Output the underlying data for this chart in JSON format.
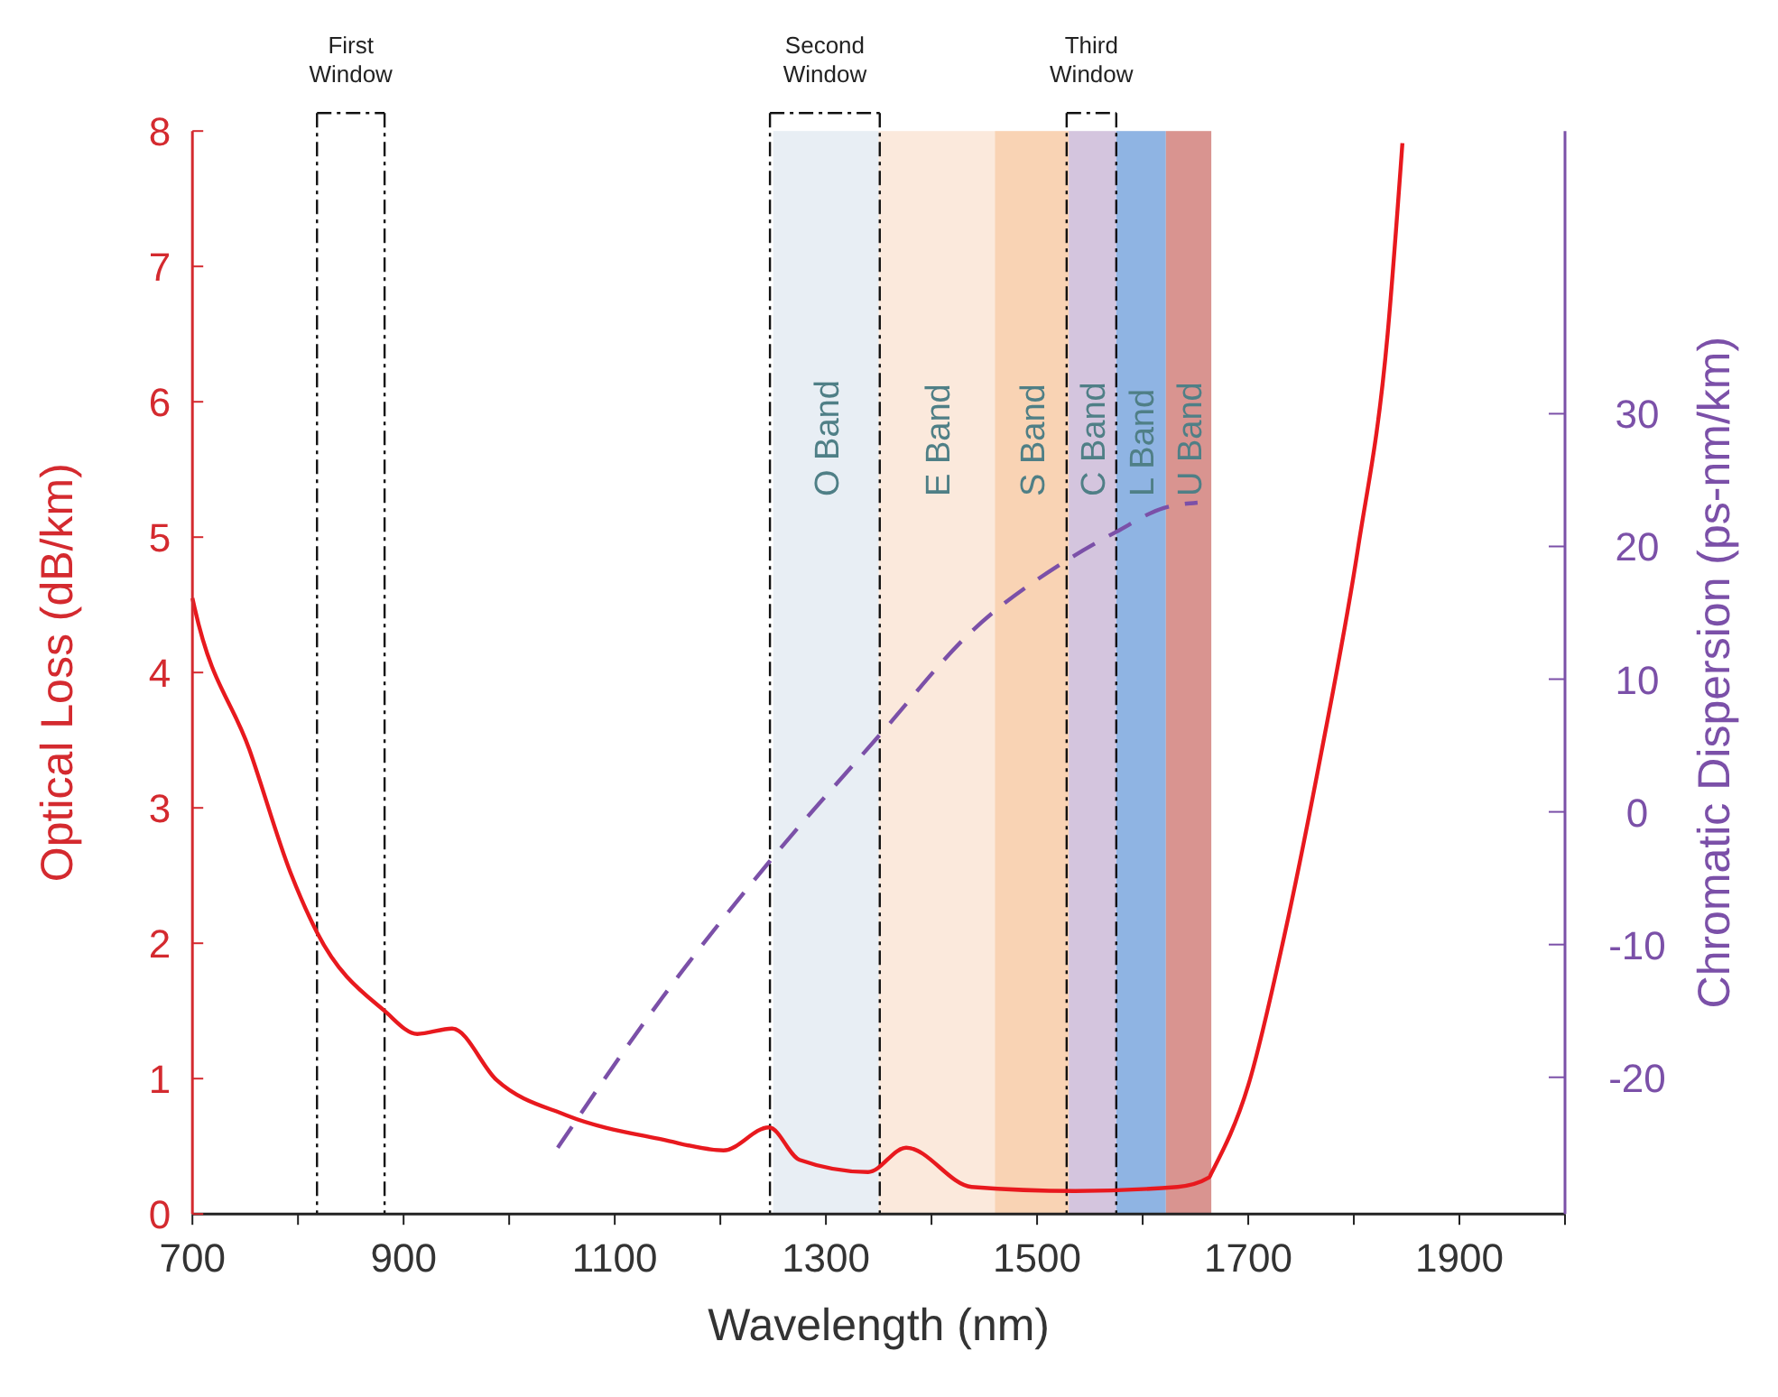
{
  "chart_data": {
    "type": "line",
    "xlabel": "Wavelength (nm)",
    "ylabel": "Optical Loss (dB/km)",
    "y2label": "Chromatic Dispersion (ps-nm/km)",
    "xlim": [
      700,
      2000
    ],
    "xticks": [
      700,
      {
        "value": 800,
        "label": null
      },
      900,
      {
        "value": 1000,
        "label": null
      },
      1100,
      {
        "value": 1200,
        "label": null
      },
      1300,
      {
        "value": 1400,
        "label": null
      },
      1500,
      {
        "value": 1600,
        "label": null
      },
      1700,
      {
        "value": 1800,
        "label": null
      },
      1900,
      {
        "value": 2000,
        "label": null
      }
    ],
    "ylim": [
      0,
      8
    ],
    "yticks": [
      0,
      1,
      2,
      3,
      4,
      5,
      6,
      7,
      8
    ],
    "y2lim": [
      -30.3,
      51.3
    ],
    "y2ticks": [
      -20,
      -10,
      0,
      10,
      20,
      30
    ],
    "series": [
      {
        "color": "#e8191e",
        "axis": "y",
        "line_style": "solid",
        "x": [
          700,
          702,
          754,
          793,
          818,
          882,
          913,
          946,
          988,
          1054,
          1145,
          1203,
          1246,
          1275,
          1340,
          1376,
          1438,
          1536,
          1633,
          1663,
          1665,
          1700,
          1734,
          1769,
          1804,
          1832,
          1846
        ],
        "values": [
          4.55,
          4.48,
          3.43,
          2.52,
          2.08,
          1.5,
          1.33,
          1.37,
          0.99,
          0.73,
          0.55,
          0.47,
          0.64,
          0.4,
          0.31,
          0.49,
          0.2,
          0.17,
          0.2,
          0.27,
          0.3,
          0.95,
          2.05,
          3.4,
          4.92,
          6.5,
          7.91
        ]
      },
      {
        "color": "#7b50a8",
        "axis": "y2",
        "line_style": "dashed",
        "x": [
          1046,
          1145,
          1246,
          1351,
          1438,
          1529,
          1575,
          1620,
          1652
        ],
        "values": [
          -25.3,
          -14,
          -3.8,
          5.8,
          13.6,
          19,
          21.1,
          22.9,
          23.3
        ]
      }
    ],
    "bands": [
      {
        "axis": "x",
        "from": 1250,
        "to": 1350,
        "label": "O Band",
        "color": "#e8eef4"
      },
      {
        "axis": "x",
        "from": 1350,
        "to": 1460,
        "label": "E Band",
        "color": "#fbe9dc"
      },
      {
        "axis": "x",
        "from": 1460,
        "to": 1530,
        "label": "S Band",
        "color": "#f9d3b4"
      },
      {
        "axis": "x",
        "from": 1530,
        "to": 1575,
        "label": "C Band",
        "color": "#d4c5de"
      },
      {
        "axis": "x",
        "from": 1575,
        "to": 1622,
        "label": "L Band",
        "color": "#8fb4e3"
      },
      {
        "axis": "x",
        "from": 1622,
        "to": 1665,
        "label": "U Band",
        "color": "#d99490"
      }
    ],
    "ref_lines": [
      {
        "axis": "x",
        "value": 818,
        "label": "First Window",
        "line_style": "dashed"
      },
      {
        "axis": "x",
        "value": 882,
        "label": null,
        "line_style": "dashed"
      },
      {
        "axis": "x",
        "value": 1247,
        "label": "Second Window",
        "line_style": "dashed"
      },
      {
        "axis": "x",
        "value": 1351,
        "label": null,
        "line_style": "dashed"
      },
      {
        "axis": "x",
        "value": 1528,
        "label": "Third Window",
        "line_style": "dashed"
      },
      {
        "axis": "x",
        "value": 1575,
        "label": null,
        "line_style": "dashed"
      }
    ]
  }
}
